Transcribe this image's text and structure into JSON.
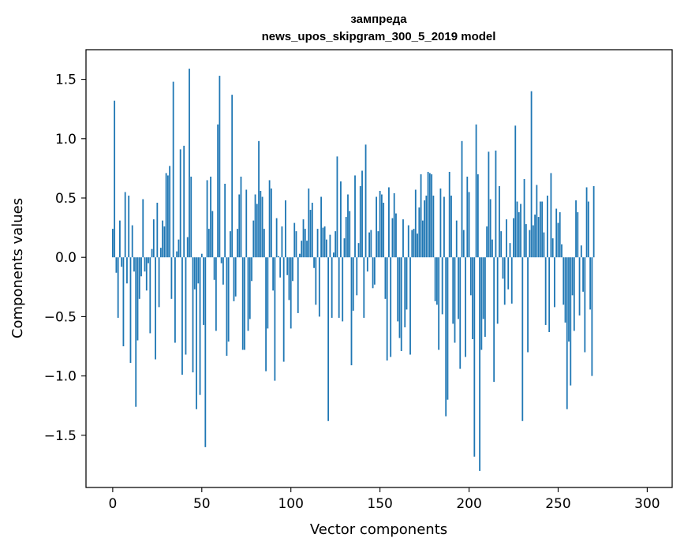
{
  "chart_data": {
    "type": "bar",
    "title": "зампреда",
    "subtitle": "news_upos_skipgram_300_5_2019 model",
    "xlabel": "Vector components",
    "ylabel": "Components values",
    "xlim": [
      -15,
      314
    ],
    "ylim": [
      -1.94,
      1.75
    ],
    "xticks": [
      0,
      50,
      100,
      150,
      200,
      250,
      300
    ],
    "xtick_labels": [
      "0",
      "50",
      "100",
      "150",
      "200",
      "250",
      "300"
    ],
    "yticks": [
      -1.5,
      -1.0,
      -0.5,
      0.0,
      0.5,
      1.0,
      1.5
    ],
    "ytick_labels": [
      "−1.5",
      "−1.0",
      "−0.5",
      "0.0",
      "0.5",
      "1.0",
      "1.5"
    ],
    "grid": false,
    "bar_color": "#1f77b4",
    "values": [
      0.24,
      1.32,
      -0.13,
      -0.51,
      0.31,
      -0.08,
      -0.75,
      0.55,
      -0.22,
      0.52,
      -0.89,
      0.27,
      -0.12,
      -1.26,
      -0.7,
      -0.35,
      -0.16,
      0.49,
      -0.12,
      -0.28,
      -0.05,
      -0.64,
      0.07,
      0.32,
      -0.86,
      0.46,
      -0.42,
      0.08,
      0.31,
      0.26,
      0.71,
      0.69,
      0.77,
      -0.35,
      1.48,
      -0.72,
      0.05,
      0.15,
      0.91,
      -0.99,
      0.94,
      -0.82,
      0.17,
      1.59,
      0.68,
      -0.97,
      -0.27,
      -1.28,
      -0.22,
      -1.16,
      0.03,
      -0.57,
      -1.6,
      0.65,
      0.24,
      0.68,
      0.39,
      -0.19,
      -0.62,
      1.12,
      1.53,
      -0.05,
      -0.23,
      0.62,
      -0.83,
      -0.71,
      0.22,
      1.37,
      -0.37,
      -0.33,
      0.24,
      0.53,
      0.68,
      -0.78,
      -0.78,
      0.57,
      -0.62,
      -0.52,
      -0.2,
      0.31,
      0.53,
      0.45,
      0.98,
      0.56,
      0.51,
      0.24,
      -0.96,
      -0.6,
      0.65,
      0.58,
      -0.28,
      -1.04,
      0.33,
      0.01,
      -0.17,
      0.26,
      -0.88,
      0.48,
      -0.15,
      -0.36,
      -0.6,
      -0.2,
      0.29,
      0.22,
      -0.47,
      0.03,
      0.14,
      0.32,
      0.24,
      0.14,
      0.58,
      0.4,
      0.46,
      -0.09,
      -0.4,
      0.24,
      -0.5,
      0.51,
      0.25,
      0.26,
      0.15,
      -1.38,
      0.19,
      -0.51,
      0.04,
      0.22,
      0.85,
      -0.51,
      0.64,
      -0.54,
      0.16,
      0.34,
      0.53,
      0.39,
      -0.91,
      -0.45,
      0.69,
      -0.32,
      0.12,
      0.6,
      0.73,
      -0.51,
      0.95,
      -0.12,
      0.21,
      0.23,
      -0.26,
      -0.23,
      0.51,
      0.22,
      0.56,
      0.53,
      0.46,
      -0.35,
      -0.87,
      0.59,
      -0.84,
      0.33,
      0.54,
      0.37,
      -0.54,
      -0.68,
      -0.79,
      0.32,
      -0.59,
      -0.44,
      0.27,
      -0.82,
      0.23,
      0.24,
      0.57,
      0.2,
      0.42,
      0.7,
      0.31,
      0.48,
      0.52,
      0.72,
      0.71,
      0.7,
      0.52,
      -0.37,
      -0.4,
      -0.78,
      0.58,
      -0.48,
      0.51,
      -1.34,
      -1.2,
      0.72,
      0.52,
      -0.56,
      -0.72,
      0.31,
      -0.52,
      -0.94,
      0.98,
      0.23,
      -0.84,
      0.68,
      0.55,
      -0.32,
      -0.69,
      -1.68,
      1.12,
      0.7,
      -1.8,
      -0.78,
      -0.52,
      -0.67,
      0.26,
      0.89,
      0.49,
      0.15,
      -1.05,
      0.9,
      -0.56,
      0.6,
      0.22,
      -0.18,
      -0.4,
      0.32,
      -0.27,
      0.12,
      -0.39,
      0.33,
      1.11,
      0.47,
      0.38,
      0.45,
      -1.38,
      0.66,
      0.28,
      -0.8,
      0.23,
      1.4,
      0.27,
      0.36,
      0.61,
      0.34,
      0.47,
      0.47,
      0.21,
      -0.57,
      0.52,
      -0.63,
      0.71,
      0.16,
      -0.42,
      0.41,
      0.29,
      0.38,
      0.11,
      -0.4,
      -0.55,
      -1.28,
      -0.71,
      -1.08,
      -0.32,
      -0.62,
      0.48,
      0.38,
      -0.49,
      0.1,
      -0.29,
      -0.8,
      0.59,
      0.47,
      -0.44,
      -1.0,
      0.6
    ]
  }
}
